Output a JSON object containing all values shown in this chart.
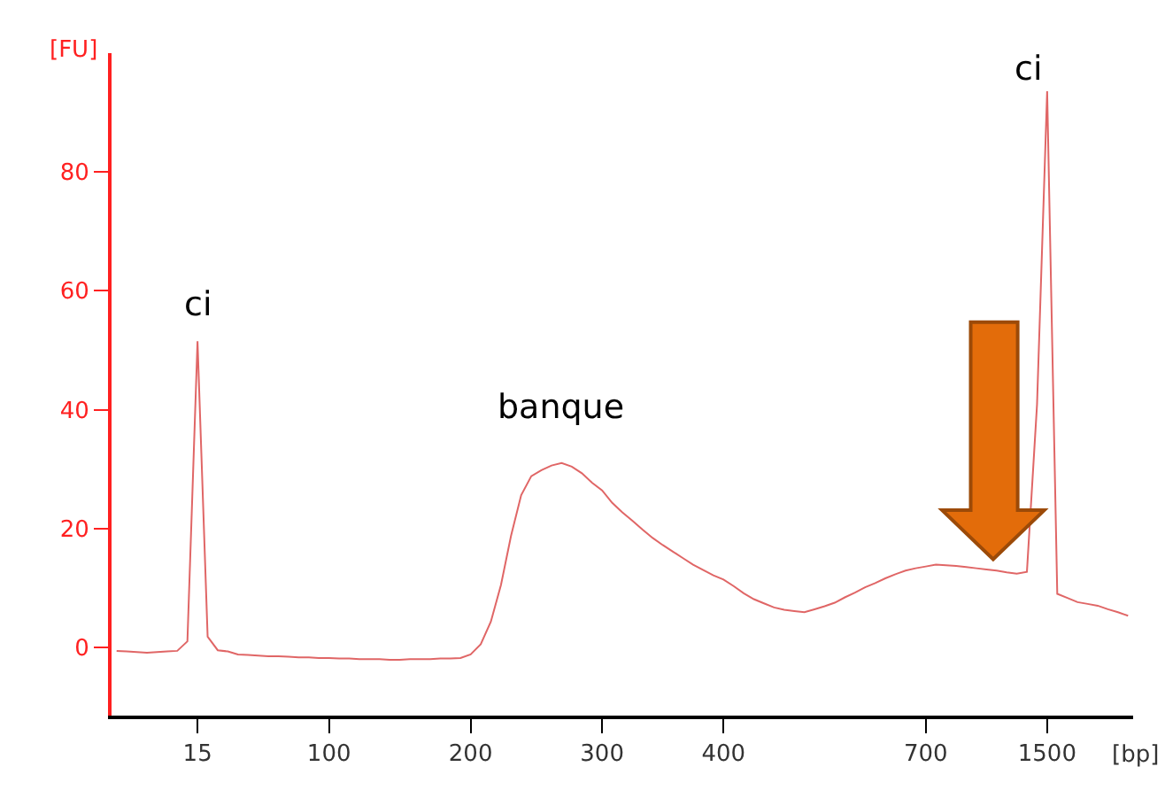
{
  "chart_data": {
    "type": "line",
    "xlabel": "[bp]",
    "ylabel": "[FU]",
    "ylim": [
      -11.5,
      100
    ],
    "yticks": [
      0,
      20,
      40,
      60,
      80
    ],
    "marker": "none",
    "line_style": "solid",
    "annotations": [
      {
        "text": "ci",
        "x": "15",
        "y": 51.5
      },
      "banque",
      "ci"
    ],
    "categories": [
      null,
      null,
      null,
      null,
      null,
      null,
      null,
      null,
      "15",
      null,
      null,
      null,
      null,
      null,
      null,
      null,
      null,
      null,
      null,
      null,
      null,
      "100",
      null,
      null,
      null,
      null,
      null,
      null,
      null,
      null,
      null,
      null,
      null,
      null,
      null,
      "200",
      null,
      null,
      null,
      null,
      null,
      null,
      null,
      null,
      null,
      null,
      null,
      null,
      "300",
      null,
      null,
      null,
      null,
      null,
      null,
      null,
      null,
      null,
      null,
      null,
      "400",
      null,
      null,
      null,
      null,
      null,
      null,
      null,
      null,
      null,
      null,
      null,
      null,
      null,
      null,
      null,
      null,
      null,
      null,
      null,
      "700",
      null,
      null,
      null,
      null,
      null,
      null,
      null,
      null,
      null,
      null,
      null,
      "1500",
      null,
      null,
      null,
      null,
      null,
      null,
      null,
      null
    ],
    "series": [
      {
        "color": "#e06666",
        "values": [
          -0.6,
          -0.7,
          -0.8,
          -0.9,
          -0.8,
          -0.7,
          -0.6,
          1.0,
          51.5,
          1.8,
          -0.5,
          -0.7,
          -1.2,
          -1.3,
          -1.4,
          -1.5,
          -1.5,
          -1.6,
          -1.7,
          -1.7,
          -1.8,
          -1.8,
          -1.9,
          -1.9,
          -2.0,
          -2.0,
          -2.0,
          -2.1,
          -2.1,
          -2.0,
          -2.0,
          -2.0,
          -1.9,
          -1.9,
          -1.8,
          -1.2,
          0.5,
          4.3,
          10.5,
          18.8,
          25.6,
          28.8,
          29.8,
          30.6,
          31.0,
          30.4,
          29.3,
          27.7,
          26.4,
          24.3,
          22.7,
          21.3,
          19.8,
          18.4,
          17.2,
          16.1,
          15.0,
          13.9,
          13.0,
          12.1,
          11.4,
          10.3,
          9.1,
          8.1,
          7.4,
          6.7,
          6.3,
          6.1,
          5.9,
          6.4,
          6.9,
          7.5,
          8.4,
          9.2,
          10.1,
          10.8,
          11.6,
          12.3,
          12.9,
          13.3,
          13.6,
          13.9,
          13.8,
          13.7,
          13.5,
          13.3,
          13.1,
          12.9,
          12.6,
          12.4,
          12.7,
          40.9,
          93.6,
          9.0,
          8.3,
          7.6,
          7.3,
          7.0,
          6.4,
          5.9,
          5.3
        ]
      }
    ]
  }
}
